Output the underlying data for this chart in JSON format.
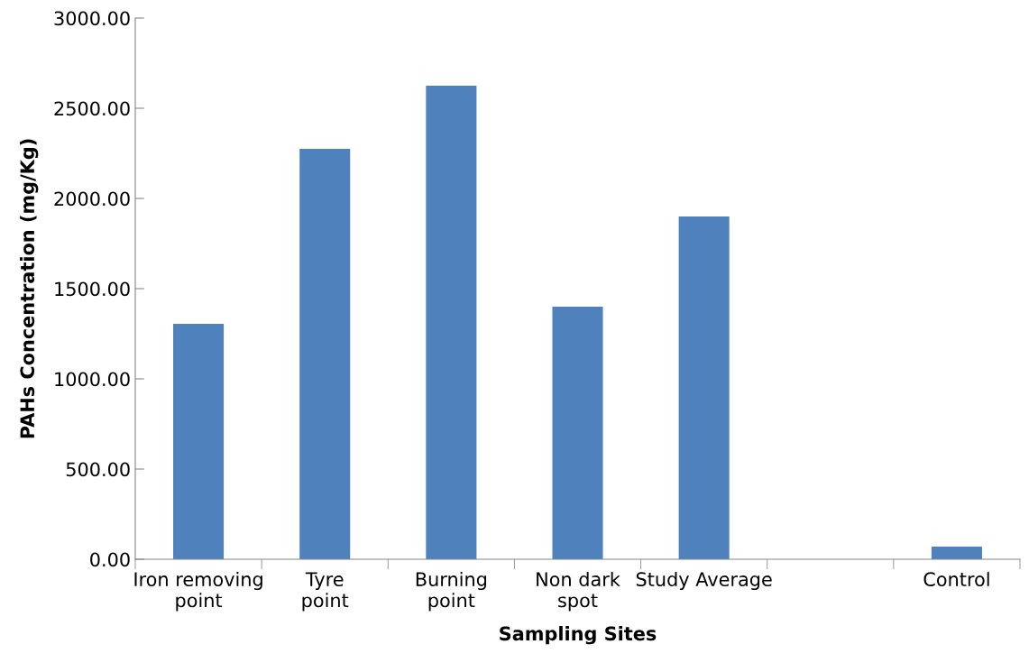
{
  "chart_data": {
    "type": "bar",
    "xlabel": "Sampling Sites",
    "ylabel": "PAHs Concentration (mg/Kg)",
    "categories": [
      "Iron removing\npoint",
      "Tyre\npoint",
      "Burning\npoint",
      "Non dark\nspot",
      "Study Average",
      null,
      "Control"
    ],
    "values": [
      1305,
      2275,
      2625,
      1400,
      1900,
      null,
      70
    ],
    "color": "#4f81bd",
    "ylim": [
      0,
      3000
    ],
    "yticks": [
      {
        "value": 0,
        "label": "0.00"
      },
      {
        "value": 500,
        "label": "500.00"
      },
      {
        "value": 1000,
        "label": "1000.00"
      },
      {
        "value": 1500,
        "label": "1500.00"
      },
      {
        "value": 2000,
        "label": "2000.00"
      },
      {
        "value": 2500,
        "label": "2500.00"
      },
      {
        "value": 3000,
        "label": "3000.00"
      }
    ],
    "grid": false
  }
}
